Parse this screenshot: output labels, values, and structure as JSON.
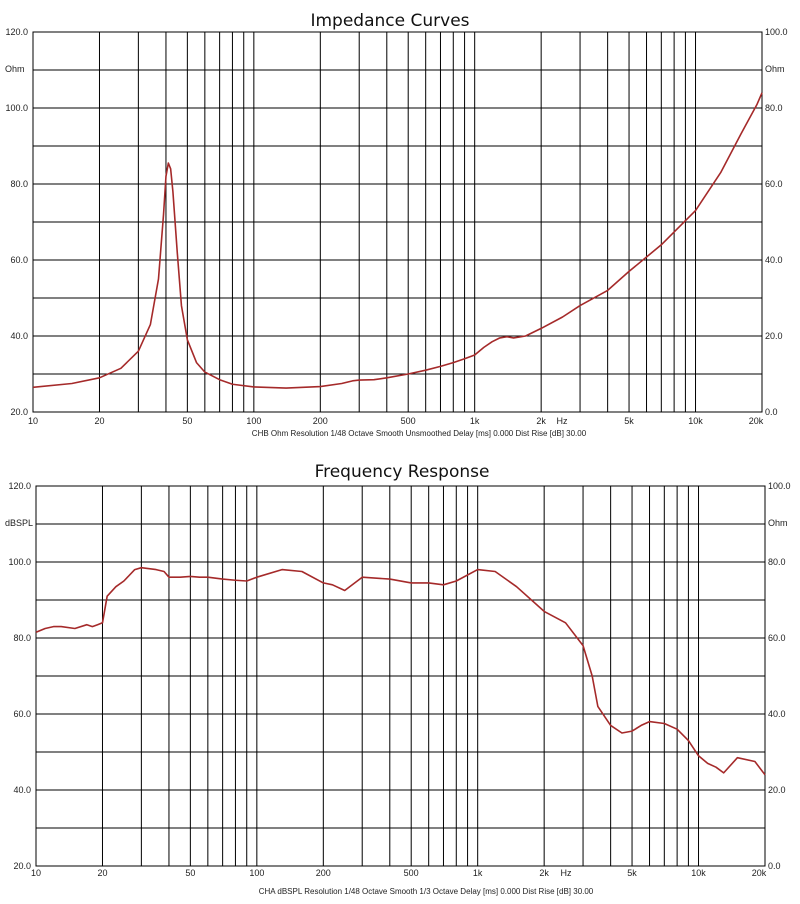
{
  "chart_data": [
    {
      "type": "line",
      "title": "Impedance Curves",
      "x_scale": "log",
      "xlim": [
        10,
        20000
      ],
      "x_ticks": [
        10,
        20,
        50,
        100,
        200,
        500,
        1000,
        2000,
        5000,
        10000,
        20000
      ],
      "x_tick_labels": [
        "10",
        "20",
        "50",
        "100",
        "200",
        "500",
        "1k",
        "2k",
        "5k",
        "10k",
        "20k"
      ],
      "x_unit": "Hz",
      "ylim": [
        20,
        120
      ],
      "y_ticks": [
        20,
        40,
        60,
        80,
        100,
        120
      ],
      "y_tick_labels": [
        "20.0",
        "40.0",
        "60.0",
        "80.0",
        "100.0",
        "120.0"
      ],
      "ylabel": "Ohm",
      "y2lim": [
        0,
        100
      ],
      "y2_ticks": [
        0,
        20,
        40,
        60,
        80,
        100
      ],
      "y2_tick_labels": [
        "0.0",
        "20.0",
        "40.0",
        "60.0",
        "80.0",
        "100.0"
      ],
      "y2label": "Ohm",
      "grid": true,
      "caption": "CHB Ohm Resolution 1/48 Octave Smooth Unsmoothed Delay [ms] 0.000 Dist Rise [dB] 30.00",
      "series": [
        {
          "color": "#a52a2a",
          "x": [
            10,
            15,
            20,
            25,
            30,
            34,
            37,
            39,
            40,
            41,
            42,
            43,
            45,
            47,
            50,
            55,
            60,
            70,
            80,
            100,
            140,
            200,
            250,
            280,
            300,
            350,
            400,
            500,
            600,
            700,
            800,
            900,
            1000,
            1100,
            1200,
            1300,
            1400,
            1500,
            1700,
            2000,
            2500,
            3000,
            4000,
            5000,
            7000,
            10000,
            13000,
            16000,
            19000,
            20000
          ],
          "y": [
            26.5,
            27.5,
            29,
            31.5,
            36,
            43,
            55,
            72,
            82,
            85.5,
            84,
            78,
            62,
            48,
            39,
            33,
            30.5,
            28.5,
            27.3,
            26.6,
            26.3,
            26.7,
            27.5,
            28.2,
            28.4,
            28.5,
            29,
            30,
            31,
            32,
            33,
            34,
            35,
            37,
            38.5,
            39.5,
            39.8,
            39.5,
            40,
            42,
            45,
            48,
            52,
            57,
            64,
            73,
            83,
            93,
            101,
            104
          ]
        }
      ]
    },
    {
      "type": "line",
      "title": "Frequency Response",
      "x_scale": "log",
      "xlim": [
        10,
        20000
      ],
      "x_ticks": [
        10,
        20,
        50,
        100,
        200,
        500,
        1000,
        2000,
        5000,
        10000,
        20000
      ],
      "x_tick_labels": [
        "10",
        "20",
        "50",
        "100",
        "200",
        "500",
        "1k",
        "2k",
        "5k",
        "10k",
        "20k"
      ],
      "x_unit": "Hz",
      "ylim": [
        20,
        120
      ],
      "y_ticks": [
        20,
        40,
        60,
        80,
        100,
        120
      ],
      "y_tick_labels": [
        "20.0",
        "40.0",
        "60.0",
        "80.0",
        "100.0",
        "120.0"
      ],
      "ylabel": "dBSPL",
      "y2lim": [
        0,
        100
      ],
      "y2_ticks": [
        0,
        20,
        40,
        60,
        80,
        100
      ],
      "y2_tick_labels": [
        "0.0",
        "20.0",
        "40.0",
        "60.0",
        "80.0",
        "100.0"
      ],
      "y2label": "Ohm",
      "grid": true,
      "caption": "CHA dBSPL Resolution 1/48 Octave Smooth 1/3 Octave Delay [ms] 0.000 Dist Rise [dB] 30.00",
      "series": [
        {
          "color": "#a52a2a",
          "x": [
            10,
            11,
            12,
            13,
            15,
            17,
            18,
            19,
            20,
            21,
            23,
            25,
            28,
            30,
            35,
            38,
            40,
            45,
            50,
            55,
            60,
            70,
            80,
            90,
            100,
            130,
            160,
            200,
            220,
            250,
            300,
            400,
            500,
            600,
            700,
            800,
            1000,
            1200,
            1500,
            2000,
            2500,
            3000,
            3300,
            3500,
            4000,
            4500,
            5000,
            5500,
            6000,
            7000,
            8000,
            9000,
            10000,
            11000,
            12000,
            13000,
            15000,
            18000,
            20000
          ],
          "y": [
            81.5,
            82.5,
            83,
            83,
            82.5,
            83.5,
            83,
            83.5,
            84,
            91,
            93.5,
            95,
            98,
            98.5,
            98,
            97.5,
            96,
            96,
            96.2,
            96,
            96,
            95.5,
            95.2,
            95,
            96,
            98,
            97.5,
            94.5,
            94,
            92.5,
            96,
            95.5,
            94.5,
            94.5,
            94,
            95,
            98,
            97.5,
            93.5,
            87,
            84,
            78,
            70,
            62,
            57,
            55,
            55.5,
            57,
            58,
            57.5,
            56,
            53,
            49,
            47,
            46,
            44.5,
            48.5,
            47.5,
            44
          ]
        }
      ]
    }
  ]
}
